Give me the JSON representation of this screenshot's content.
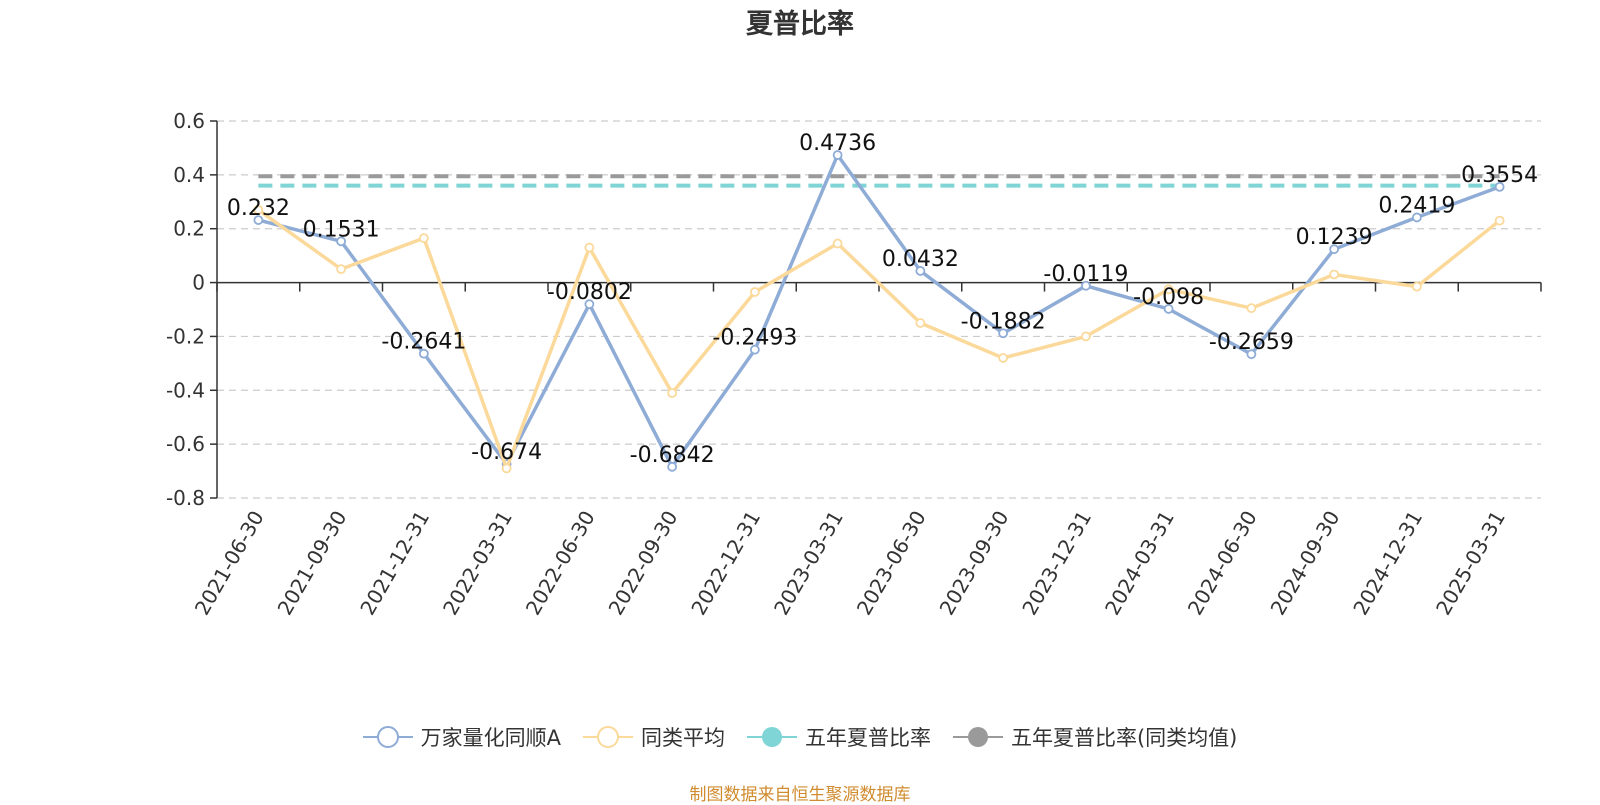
{
  "chart_data": {
    "type": "line",
    "title": "夏普比率",
    "categories": [
      "2021-06-30",
      "2021-09-30",
      "2021-12-31",
      "2022-03-31",
      "2022-06-30",
      "2022-09-30",
      "2022-12-31",
      "2023-03-31",
      "2023-06-30",
      "2023-09-30",
      "2023-12-31",
      "2024-03-31",
      "2024-06-30",
      "2024-09-30",
      "2024-12-31",
      "2025-03-31"
    ],
    "y_ticks": [
      "0.6",
      "0.4",
      "0.2",
      "0",
      "-0.2",
      "-0.4",
      "-0.6",
      "-0.8"
    ],
    "ylim": [
      -0.8,
      0.6
    ],
    "grid": true,
    "legend_position": "bottom",
    "series": [
      {
        "name": "万家量化同顺A",
        "color": "#8eacd6",
        "values": [
          0.232,
          0.1531,
          -0.2641,
          -0.674,
          -0.0802,
          -0.6842,
          -0.2493,
          0.4736,
          0.0432,
          -0.1882,
          -0.0119,
          -0.098,
          -0.2659,
          0.1239,
          0.2419,
          0.3554
        ],
        "labels": [
          "0.232",
          "0.1531",
          "-0.2641",
          "-0.674",
          "-0.0802",
          "-0.6842",
          "-0.2493",
          "0.4736",
          "0.0432",
          "-0.1882",
          "-0.0119",
          "-0.098",
          "-0.2659",
          "0.1239",
          "0.2419",
          "0.3554"
        ]
      },
      {
        "name": "同类平均",
        "color": "#fbd99a",
        "values": [
          0.27,
          0.05,
          0.165,
          -0.69,
          0.13,
          -0.41,
          -0.035,
          0.145,
          -0.15,
          -0.28,
          -0.2,
          -0.025,
          -0.095,
          0.03,
          -0.015,
          0.23
        ]
      }
    ],
    "reference_lines": [
      {
        "name": "五年夏普比率",
        "color": "#7fd4d6",
        "value": 0.36
      },
      {
        "name": "五年夏普比率(同类均值)",
        "color": "#9a9a9a",
        "value": 0.395
      }
    ]
  },
  "legend": [
    {
      "label": "万家量化同顺A",
      "color": "#8eacd6",
      "icon": "hollow-circle-icon"
    },
    {
      "label": "同类平均",
      "color": "#fbd99a",
      "icon": "hollow-circle-icon"
    },
    {
      "label": "五年夏普比率",
      "color": "#7fd4d6",
      "icon": "filled-circle-icon"
    },
    {
      "label": "五年夏普比率(同类均值)",
      "color": "#9a9a9a",
      "icon": "filled-circle-icon"
    }
  ],
  "source": "制图数据来自恒生聚源数据库"
}
